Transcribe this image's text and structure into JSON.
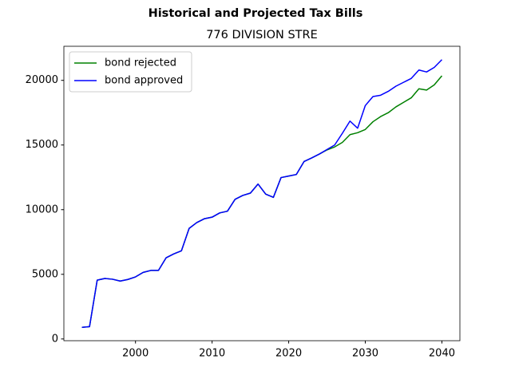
{
  "chart_data": {
    "type": "line",
    "title": "Historical and Projected Tax Bills",
    "subtitle": "776 DIVISION STRE",
    "x": [
      1993,
      1994,
      1995,
      1996,
      1997,
      1998,
      1999,
      2000,
      2001,
      2002,
      2003,
      2004,
      2005,
      2006,
      2007,
      2008,
      2009,
      2010,
      2011,
      2012,
      2013,
      2014,
      2015,
      2016,
      2017,
      2018,
      2019,
      2020,
      2021,
      2022,
      2023,
      2024,
      2025,
      2026,
      2027,
      2028,
      2029,
      2030,
      2031,
      2032,
      2033,
      2034,
      2035,
      2036,
      2037,
      2038,
      2039,
      2040
    ],
    "series": [
      {
        "name": "bond rejected",
        "color": "#008000",
        "values": [
          900,
          950,
          4550,
          4680,
          4620,
          4480,
          4600,
          4800,
          5150,
          5300,
          5300,
          6280,
          6580,
          6820,
          8550,
          9000,
          9300,
          9420,
          9750,
          9880,
          10800,
          11100,
          11280,
          11980,
          11200,
          10950,
          12480,
          12600,
          12720,
          13720,
          14000,
          14300,
          14620,
          14850,
          15200,
          15800,
          15950,
          16200,
          16800,
          17200,
          17500,
          17950,
          18300,
          18650,
          19350,
          19250,
          19650,
          20350
        ]
      },
      {
        "name": "bond approved",
        "color": "#0000ff",
        "values": [
          900,
          950,
          4550,
          4680,
          4620,
          4480,
          4600,
          4800,
          5150,
          5300,
          5300,
          6280,
          6580,
          6820,
          8550,
          9000,
          9300,
          9420,
          9750,
          9880,
          10800,
          11100,
          11280,
          11980,
          11200,
          10950,
          12480,
          12600,
          12720,
          13720,
          14000,
          14300,
          14650,
          15000,
          15900,
          16850,
          16300,
          18050,
          18750,
          18850,
          19150,
          19550,
          19850,
          20150,
          20800,
          20650,
          21000,
          21600
        ]
      }
    ],
    "xlim": [
      1990.65,
      2042.35
    ],
    "xticks": [
      2000,
      2010,
      2020,
      2030,
      2040
    ],
    "ylim": [
      -135,
      22635
    ],
    "yticks": [
      0,
      5000,
      10000,
      15000,
      20000
    ],
    "grid": false,
    "legend": "upper left"
  }
}
